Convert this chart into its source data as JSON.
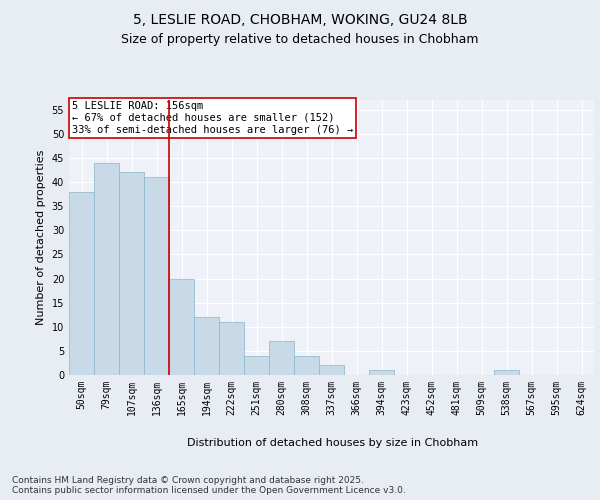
{
  "title1": "5, LESLIE ROAD, CHOBHAM, WOKING, GU24 8LB",
  "title2": "Size of property relative to detached houses in Chobham",
  "xlabel": "Distribution of detached houses by size in Chobham",
  "ylabel": "Number of detached properties",
  "categories": [
    "50sqm",
    "79sqm",
    "107sqm",
    "136sqm",
    "165sqm",
    "194sqm",
    "222sqm",
    "251sqm",
    "280sqm",
    "308sqm",
    "337sqm",
    "366sqm",
    "394sqm",
    "423sqm",
    "452sqm",
    "481sqm",
    "509sqm",
    "538sqm",
    "567sqm",
    "595sqm",
    "624sqm"
  ],
  "values": [
    38,
    44,
    42,
    41,
    20,
    12,
    11,
    4,
    7,
    4,
    2,
    0,
    1,
    0,
    0,
    0,
    0,
    1,
    0,
    0,
    0
  ],
  "bar_color": "#c8d9e8",
  "bar_edge_color": "#8ab4cc",
  "vline_x": 3.5,
  "vline_color": "#cc0000",
  "annotation_text": "5 LESLIE ROAD: 156sqm\n← 67% of detached houses are smaller (152)\n33% of semi-detached houses are larger (76) →",
  "annotation_box_color": "white",
  "annotation_box_edge_color": "#cc0000",
  "ylim": [
    0,
    57
  ],
  "yticks": [
    0,
    5,
    10,
    15,
    20,
    25,
    30,
    35,
    40,
    45,
    50,
    55
  ],
  "background_color": "#e8edf4",
  "plot_bg_color": "#eef2f8",
  "grid_color": "#ffffff",
  "footnote": "Contains HM Land Registry data © Crown copyright and database right 2025.\nContains public sector information licensed under the Open Government Licence v3.0.",
  "title_fontsize": 10,
  "subtitle_fontsize": 9,
  "axis_label_fontsize": 8,
  "tick_fontsize": 7,
  "annotation_fontsize": 7.5,
  "footnote_fontsize": 6.5
}
